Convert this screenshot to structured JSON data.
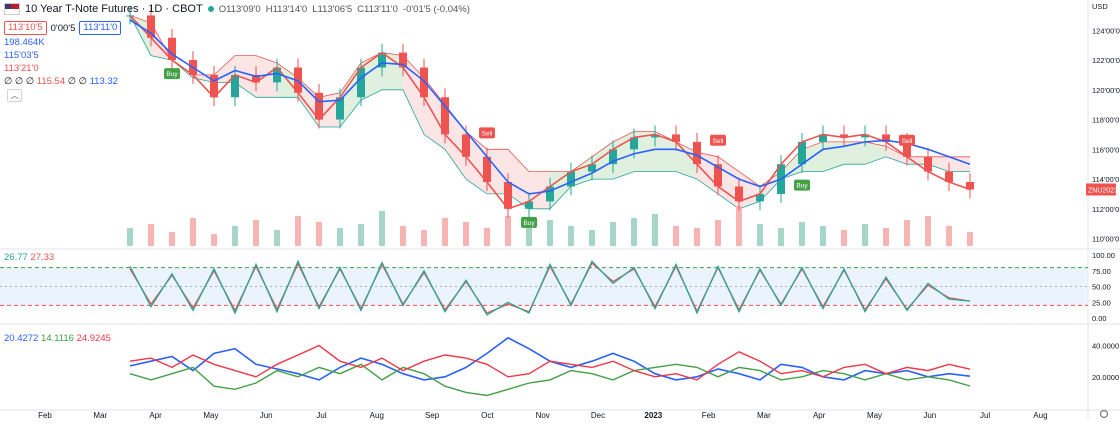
{
  "header": {
    "title": "10 Year T-Note Futures · 1D · CBOT",
    "open": "O113'09'0",
    "high": "H113'14'0",
    "low": "L113'06'5",
    "close": "C113'11'0",
    "change": "-0'01'5 (-0.04%)",
    "sell_pill": "113'10'5",
    "spread": "0'00'5",
    "buy_pill": "113'11'0",
    "collapse_icon": "chevron-up"
  },
  "indicators": {
    "volume": "198.464K",
    "line1": "115'03'5",
    "line2": "113'21'0",
    "row4_prefix": "∅ ∅ ∅",
    "row4_a": "115.54",
    "row4_mid": "∅ ∅",
    "row4_b": "113.32"
  },
  "stoch_values": [
    "26.77",
    "27.33"
  ],
  "dmi_values": [
    "20.4272",
    "14.1116",
    "24.9245"
  ],
  "currency": "USD",
  "symbol_tag": "ZNU2023",
  "settings_icon": "gear-icon",
  "colors": {
    "up": "#26a69a",
    "down": "#ef5350",
    "ma": "#2962ff",
    "cloud_red": "#f8d0d0",
    "cloud_green": "#d9f2dc",
    "stoch_k": "#26a69a",
    "stoch_d": "#ef5350",
    "dmi_adx": "#2962ff",
    "dmi_plus": "#43a047",
    "dmi_minus": "#f23645"
  },
  "chart_data": [
    {
      "type": "candlestick",
      "title": "10 Year T-Note Futures · 1D · CBOT",
      "x_tick_labels": [
        "Feb",
        "Mar",
        "Apr",
        "May",
        "Jun",
        "Jul",
        "Aug",
        "Sep",
        "Oct",
        "Nov",
        "Dec",
        "2023",
        "Feb",
        "Mar",
        "Apr",
        "May",
        "Jun",
        "Jul",
        "Aug"
      ],
      "y_tick_labels": [
        "124'00'0",
        "122'00'0",
        "120'00'0",
        "118'00'0",
        "116'00'0",
        "114'00'0",
        "112'00'0",
        "110'00'0"
      ],
      "ylim": [
        109.5,
        125.5
      ],
      "series": [
        {
          "values": [
            125,
            123.5,
            122,
            121,
            119.5,
            121,
            120.5,
            121.5,
            119.8,
            118,
            119.5,
            121.5,
            122.5,
            121.5,
            119.5,
            117,
            115.5,
            113.8,
            112,
            112.5,
            113.5,
            114.5,
            115,
            116,
            116.8,
            117,
            116.5,
            115,
            113.5,
            112.5,
            113,
            115,
            116.5,
            117,
            116.8,
            117,
            116.5,
            115.5,
            114.5,
            113.8,
            113.3
          ]
        },
        {
          "values": [
            124.7,
            123.8,
            122.4,
            121.5,
            120.6,
            121.3,
            120.9,
            121.1,
            120.6,
            119.2,
            119.3,
            120.8,
            121.8,
            121.7,
            120.6,
            118.9,
            117.2,
            115.5,
            113.8,
            113,
            113.2,
            113.8,
            114.4,
            115.2,
            115.7,
            116,
            116,
            115.6,
            114.8,
            114,
            113.5,
            114,
            115,
            116,
            116.2,
            116.5,
            116.6,
            116.4,
            116,
            115.5,
            115
          ]
        },
        {
          "values": [
            125,
            124.5,
            122,
            121,
            121,
            122.3,
            122.3,
            121.8,
            120.8,
            119.5,
            119.8,
            121.8,
            122.5,
            122.3,
            120.8,
            119,
            117.2,
            116,
            116,
            114.5,
            114.5,
            114.5,
            115.5,
            116.5,
            117.2,
            117.2,
            116.5,
            115.8,
            115.5,
            114.5,
            113.5,
            114.5,
            116,
            116.5,
            116.5,
            116.5,
            116.2,
            115.5,
            115.5,
            115.5,
            115.5
          ]
        },
        {
          "values": [
            125,
            122.3,
            122,
            120.8,
            120.5,
            120.5,
            119.5,
            119.5,
            119.5,
            117.5,
            117.5,
            119.3,
            120,
            120,
            117,
            116,
            114,
            113,
            113,
            112,
            112,
            113.5,
            114,
            114,
            114.5,
            114.5,
            114.5,
            114,
            113,
            112,
            112.5,
            114,
            114.5,
            114.5,
            115,
            115,
            115.5,
            115,
            115,
            114.5,
            114.5
          ]
        }
      ],
      "signals": [
        "Sell",
        "Buy",
        "Buy",
        "Sell",
        "Buy",
        "Sell"
      ]
    },
    {
      "type": "line",
      "ylim": [
        0,
        100
      ],
      "y_tick_labels": [
        "100.00",
        "75.00",
        "50.00",
        "25.00",
        "0.00"
      ],
      "series": [
        {
          "values": [
            82,
            18,
            70,
            12,
            78,
            8,
            85,
            10,
            90,
            15,
            80,
            12,
            88,
            20,
            75,
            10,
            60,
            5,
            25,
            8,
            85,
            20,
            90,
            55,
            80,
            15,
            85,
            8,
            82,
            10,
            78,
            20,
            80,
            15,
            78,
            10,
            65,
            12,
            55,
            30,
            27
          ]
        },
        {
          "values": [
            78,
            22,
            68,
            16,
            75,
            12,
            82,
            14,
            86,
            18,
            78,
            15,
            85,
            22,
            72,
            13,
            58,
            8,
            22,
            10,
            82,
            22,
            87,
            58,
            78,
            18,
            82,
            11,
            80,
            13,
            76,
            22,
            78,
            18,
            76,
            13,
            62,
            14,
            52,
            32,
            26.77
          ]
        }
      ]
    },
    {
      "type": "line",
      "ylim": [
        0,
        50
      ],
      "y_tick_labels": [
        "40.0000",
        "20.0000"
      ],
      "series": [
        {
          "values": [
            27,
            30,
            33,
            24,
            35,
            38,
            28,
            25,
            22,
            18,
            26,
            32,
            28,
            22,
            18,
            20,
            26,
            35,
            45,
            38,
            30,
            26,
            30,
            35,
            30,
            22,
            18,
            20,
            25,
            22,
            18,
            28,
            26,
            20,
            18,
            24,
            22,
            24,
            20,
            22,
            20.4
          ]
        },
        {
          "values": [
            22,
            18,
            22,
            26,
            14,
            12,
            16,
            24,
            20,
            26,
            22,
            28,
            18,
            26,
            22,
            14,
            10,
            8,
            12,
            16,
            18,
            24,
            22,
            18,
            24,
            26,
            28,
            26,
            20,
            26,
            24,
            18,
            20,
            24,
            22,
            18,
            22,
            18,
            20,
            18,
            14.1
          ]
        },
        {
          "values": [
            30,
            32,
            26,
            34,
            28,
            24,
            20,
            28,
            34,
            40,
            30,
            26,
            32,
            24,
            30,
            34,
            32,
            28,
            20,
            22,
            30,
            28,
            26,
            30,
            24,
            20,
            22,
            18,
            28,
            36,
            30,
            22,
            24,
            20,
            26,
            28,
            22,
            26,
            24,
            28,
            24.9
          ]
        }
      ]
    }
  ]
}
